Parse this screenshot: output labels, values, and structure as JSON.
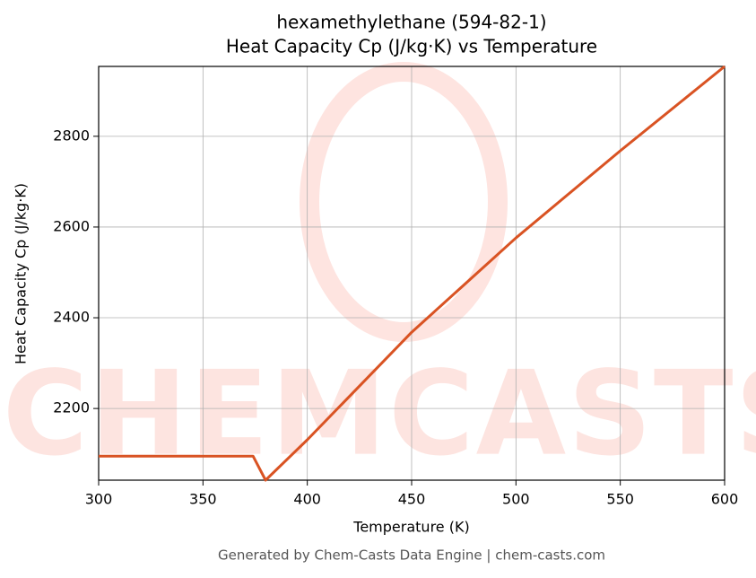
{
  "chart_data": {
    "type": "line",
    "title": "hexamethylethane (594-82-1)",
    "subtitle": "Heat Capacity Cp (J/kg·K) vs Temperature",
    "x_label": "Temperature (K)",
    "y_label": "Heat Capacity Cp (J/kg·K)",
    "watermark": "CHEMCASTS",
    "footer": "Generated by Chem-Casts Data Engine | chem-casts.com",
    "x": [
      300,
      350,
      374,
      380,
      400,
      450,
      500,
      550,
      600
    ],
    "series": [
      {
        "name": "Cp",
        "color": "#d95323",
        "values": [
          2095,
          2095,
          2095,
          2042,
          2131,
          2368,
          2576,
          2768,
          2954
        ]
      }
    ],
    "xlim": [
      300,
      600
    ],
    "xticks": [
      300,
      350,
      400,
      450,
      500,
      550,
      600
    ],
    "ylim": [
      2042,
      2954
    ],
    "yticks": [
      2200,
      2400,
      2600,
      2800
    ],
    "grid": true
  }
}
